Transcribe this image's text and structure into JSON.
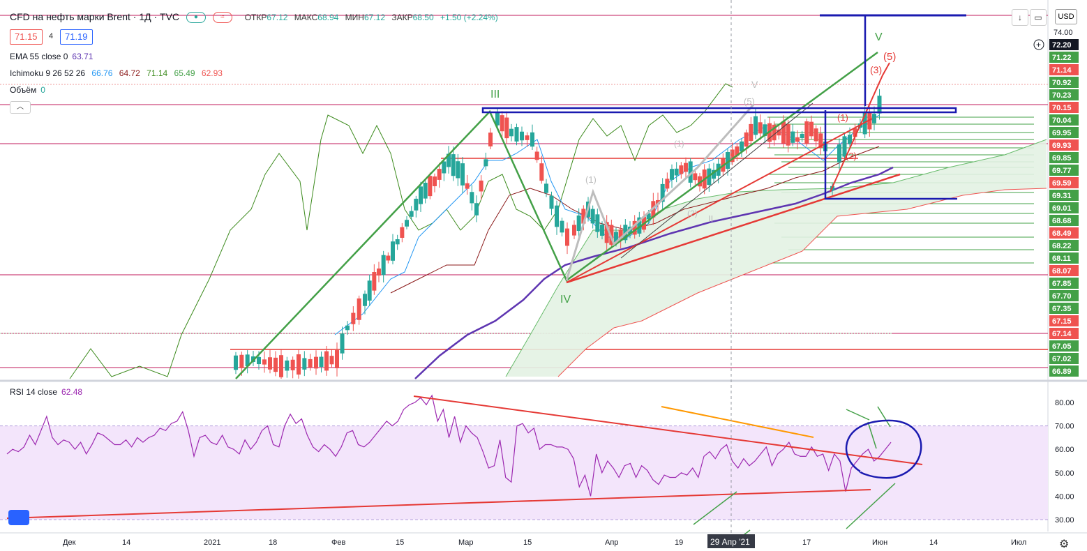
{
  "header": {
    "title": "CFD на нефть марки Brent · 1Д · TVC",
    "ohlc": {
      "open_label": "ОТКР",
      "open": "67.12",
      "high_label": "МАКС",
      "high": "68.94",
      "low_label": "МИН",
      "low": "67.12",
      "close_label": "ЗАКР",
      "close": "68.50",
      "change": "+1.50 (+2.24%)"
    },
    "bid": "71.15",
    "spread": "4",
    "ask": "71.19",
    "currency": "USD"
  },
  "indicators": {
    "ema": {
      "label": "EMA 55 close 0",
      "value": "63.71"
    },
    "ichimoku": {
      "label": "Ichimoku 9 26 52 26",
      "values": [
        "66.76",
        "64.72",
        "71.14",
        "65.49",
        "62.93"
      ]
    },
    "volume": {
      "label": "Объём",
      "value": "0"
    },
    "rsi": {
      "label": "RSI 14 close",
      "value": "62.48"
    }
  },
  "icons": {
    "toggle": "chevron-up-icon",
    "down": "arrow-down-icon",
    "restore": "restore-icon",
    "maximize": "maximize-icon",
    "logo": "tradingview-logo-icon",
    "settings": "gear-icon",
    "crosshair": "plus-circle-icon"
  },
  "colors": {
    "up": "#26a69a",
    "down": "#ef5350",
    "ema": "#5e35b1",
    "tenkan": "#2196f3",
    "kijun": "#8b1a1a",
    "chikou": "#3d8b1e",
    "cloud_bull": "#e3f2e3",
    "rsi": "#9c27b0",
    "rsi_band": "#f3e5fb",
    "marker_green": "#43a047",
    "marker_red": "#e53935",
    "box_blue": "#1a1ab0"
  },
  "chart_data": {
    "type": "candlestick",
    "symbol": "CFD на нефть марки Brent",
    "interval": "1Д",
    "price_axis": {
      "ticks": [
        "74.00",
        "72.20",
        "71.22",
        "71.14",
        "70.92",
        "70.23",
        "70.15",
        "70.04",
        "69.95",
        "69.93",
        "69.85",
        "69.77",
        "69.59",
        "69.31",
        "69.01",
        "68.68",
        "68.49",
        "68.22",
        "68.11",
        "68.07",
        "67.85",
        "67.70",
        "67.35",
        "67.15",
        "67.14",
        "67.05",
        "67.02",
        "66.89"
      ],
      "highlighted": {
        "72.20": "#131722",
        "71.14": "#ef5350",
        "70.15": "#ef5350",
        "69.93": "#ef5350",
        "69.59": "#ef5350",
        "68.49": "#ef5350",
        "68.07": "#ef5350",
        "67.15": "#ef5350",
        "67.14": "#ef5350",
        "70.92": "#43a047",
        "70.23": "#43a047",
        "70.04": "#43a047",
        "69.95": "#43a047",
        "69.85": "#43a047",
        "69.77": "#43a047",
        "69.31": "#43a047",
        "69.01": "#43a047",
        "68.68": "#43a047",
        "68.22": "#43a047",
        "68.11": "#43a047",
        "67.85": "#43a047",
        "67.70": "#43a047",
        "67.35": "#43a047",
        "67.05": "#43a047",
        "67.02": "#43a047",
        "66.89": "#43a047",
        "71.22": "#43a047"
      }
    },
    "time_axis": [
      "Дек",
      "14",
      "2021",
      "18",
      "Фев",
      "15",
      "Мар",
      "15",
      "Апр",
      "19",
      "29 Апр '21",
      "17",
      "Июн",
      "14",
      "Июл"
    ],
    "crosshair_date": "29 Апр '21",
    "wave_labels": {
      "green": [
        "III",
        "IV",
        "V"
      ],
      "red": [
        "(5)",
        "(3)",
        "(2)",
        "(1)"
      ],
      "grey": [
        "(1)",
        "(5)",
        "V",
        "II",
        "(1)",
        "(2)"
      ]
    },
    "rsi": {
      "ticks": [
        "80.00",
        "70.00",
        "60.00",
        "50.00",
        "40.00",
        "30.00"
      ],
      "upper": 70,
      "lower": 30,
      "values": [
        58,
        60,
        59,
        61,
        66,
        62,
        68,
        74,
        65,
        62,
        64,
        63,
        60,
        63,
        58,
        62,
        67,
        66,
        64,
        62,
        62,
        64,
        61,
        65,
        63,
        65,
        66,
        69,
        68,
        71,
        72,
        76,
        68,
        57,
        65,
        66,
        63,
        62,
        66,
        61,
        60,
        58,
        64,
        60,
        63,
        68,
        70,
        62,
        61,
        70,
        75,
        71,
        73,
        66,
        61,
        59,
        62,
        60,
        57,
        61,
        67,
        68,
        62,
        61,
        63,
        66,
        69,
        72,
        70,
        72,
        77,
        79,
        80,
        82,
        79,
        83,
        72,
        77,
        65,
        74,
        63,
        70,
        67,
        65,
        59,
        52,
        53,
        64,
        48,
        46,
        70,
        71,
        67,
        69,
        60,
        62,
        62,
        61,
        61,
        60,
        56,
        44,
        49,
        40,
        58,
        50,
        55,
        52,
        48,
        53,
        54,
        48,
        53,
        51,
        47,
        45,
        49,
        48,
        48,
        50,
        49,
        52,
        48,
        57,
        59,
        56,
        60,
        62,
        55,
        52,
        56,
        53,
        55,
        58,
        61,
        53,
        58,
        60,
        63,
        58,
        57,
        57,
        61,
        57,
        58,
        51,
        58,
        55,
        42,
        52,
        55,
        58,
        60,
        55,
        57,
        60,
        63
      ]
    },
    "candles_note": "daily OHLC of Brent; price range 66.89-74.00 on axis"
  }
}
